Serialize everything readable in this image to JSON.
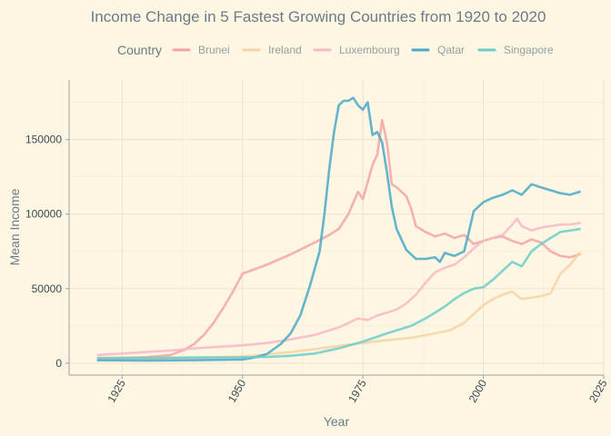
{
  "chart_data": {
    "type": "line",
    "title": "Income Change in 5 Fastest Growing Countries from 1920 to 2020",
    "xlabel": "Year",
    "ylabel": "Mean Income",
    "xlim": [
      1914,
      2025
    ],
    "ylim": [
      -8000,
      190000
    ],
    "x_ticks": [
      1925,
      1950,
      1975,
      2000,
      2025
    ],
    "y_ticks": [
      0,
      50000,
      100000,
      150000
    ],
    "y_tick_labels": [
      "0",
      "50000",
      "100000",
      "150000"
    ],
    "grid": true,
    "legend": {
      "title": "Country",
      "placement": "top"
    },
    "series": [
      {
        "name": "Brunei",
        "color": "#f4a3a8",
        "x": [
          1920,
          1925,
          1930,
          1935,
          1938,
          1940,
          1942,
          1944,
          1946,
          1948,
          1950,
          1955,
          1960,
          1965,
          1968,
          1970,
          1972,
          1974,
          1975,
          1977,
          1978,
          1979,
          1980,
          1981,
          1982,
          1984,
          1985,
          1986,
          1988,
          1990,
          1992,
          1994,
          1996,
          1998,
          2000,
          2002,
          2004,
          2006,
          2008,
          2010,
          2012,
          2014,
          2016,
          2018,
          2020
        ],
        "y": [
          3000,
          3500,
          4000,
          5500,
          9000,
          13000,
          19000,
          27000,
          37000,
          48000,
          60000,
          66000,
          73000,
          81000,
          86000,
          90000,
          100000,
          115000,
          110000,
          133000,
          140000,
          163000,
          148000,
          120000,
          118000,
          112000,
          104000,
          92000,
          88000,
          85000,
          87000,
          84000,
          86000,
          80000,
          82000,
          84000,
          85000,
          82000,
          80000,
          83000,
          81000,
          75000,
          72000,
          71000,
          73000
        ]
      },
      {
        "name": "Ireland",
        "color": "#f9d2a5",
        "x": [
          1920,
          1930,
          1940,
          1950,
          1955,
          1960,
          1965,
          1970,
          1975,
          1980,
          1985,
          1990,
          1993,
          1996,
          1998,
          2000,
          2002,
          2004,
          2006,
          2008,
          2010,
          2012,
          2014,
          2016,
          2018,
          2020
        ],
        "y": [
          2500,
          3000,
          3500,
          4500,
          6000,
          7500,
          9500,
          11500,
          13500,
          15500,
          17000,
          20000,
          22000,
          27000,
          33000,
          39000,
          43000,
          46000,
          48000,
          43000,
          44000,
          45000,
          47000,
          60000,
          66000,
          74000
        ]
      },
      {
        "name": "Luxembourg",
        "color": "#f7b9c7",
        "x": [
          1920,
          1925,
          1930,
          1935,
          1940,
          1945,
          1950,
          1955,
          1960,
          1965,
          1970,
          1972,
          1974,
          1976,
          1978,
          1980,
          1982,
          1984,
          1986,
          1988,
          1990,
          1992,
          1994,
          1996,
          1998,
          2000,
          2002,
          2004,
          2006,
          2007,
          2008,
          2010,
          2012,
          2014,
          2016,
          2018,
          2020
        ],
        "y": [
          5500,
          6500,
          7500,
          8500,
          10000,
          11000,
          12000,
          13500,
          16000,
          19000,
          24000,
          27000,
          30000,
          29000,
          32000,
          34000,
          36000,
          40000,
          46000,
          54000,
          61000,
          64000,
          66000,
          71000,
          77000,
          82000,
          84000,
          86000,
          93000,
          97000,
          92000,
          89000,
          91000,
          92000,
          93000,
          93000,
          94000
        ]
      },
      {
        "name": "Qatar",
        "color": "#4aa8c8",
        "x": [
          1920,
          1930,
          1940,
          1950,
          1952,
          1955,
          1958,
          1960,
          1962,
          1964,
          1966,
          1967,
          1968,
          1969,
          1970,
          1971,
          1972,
          1973,
          1974,
          1975,
          1976,
          1977,
          1978,
          1979,
          1980,
          1981,
          1982,
          1983,
          1984,
          1986,
          1988,
          1990,
          1991,
          1992,
          1994,
          1996,
          1997,
          1998,
          2000,
          2002,
          2004,
          2006,
          2008,
          2010,
          2012,
          2014,
          2016,
          2018,
          2020
        ],
        "y": [
          2000,
          1800,
          2000,
          2500,
          3500,
          6000,
          13000,
          20000,
          32000,
          52000,
          75000,
          100000,
          130000,
          155000,
          173000,
          176000,
          176000,
          178000,
          173000,
          170000,
          175000,
          153000,
          155000,
          148000,
          128000,
          105000,
          90000,
          83000,
          76000,
          70000,
          70000,
          71000,
          68000,
          74000,
          72000,
          75000,
          88000,
          102000,
          108000,
          111000,
          113000,
          116000,
          113000,
          120000,
          118000,
          116000,
          114000,
          113000,
          115000
        ]
      },
      {
        "name": "Singapore",
        "color": "#6ccdc9",
        "x": [
          1920,
          1930,
          1940,
          1950,
          1955,
          1960,
          1965,
          1970,
          1975,
          1980,
          1985,
          1988,
          1990,
          1992,
          1994,
          1996,
          1998,
          2000,
          2002,
          2004,
          2006,
          2008,
          2010,
          2012,
          2014,
          2016,
          2018,
          2020
        ],
        "y": [
          3500,
          3500,
          3800,
          4000,
          4200,
          5000,
          6500,
          10000,
          14500,
          20000,
          25000,
          30000,
          34000,
          38000,
          43000,
          47000,
          50000,
          51000,
          56000,
          62000,
          68000,
          65000,
          75000,
          80000,
          84000,
          88000,
          89000,
          90000
        ]
      }
    ]
  }
}
